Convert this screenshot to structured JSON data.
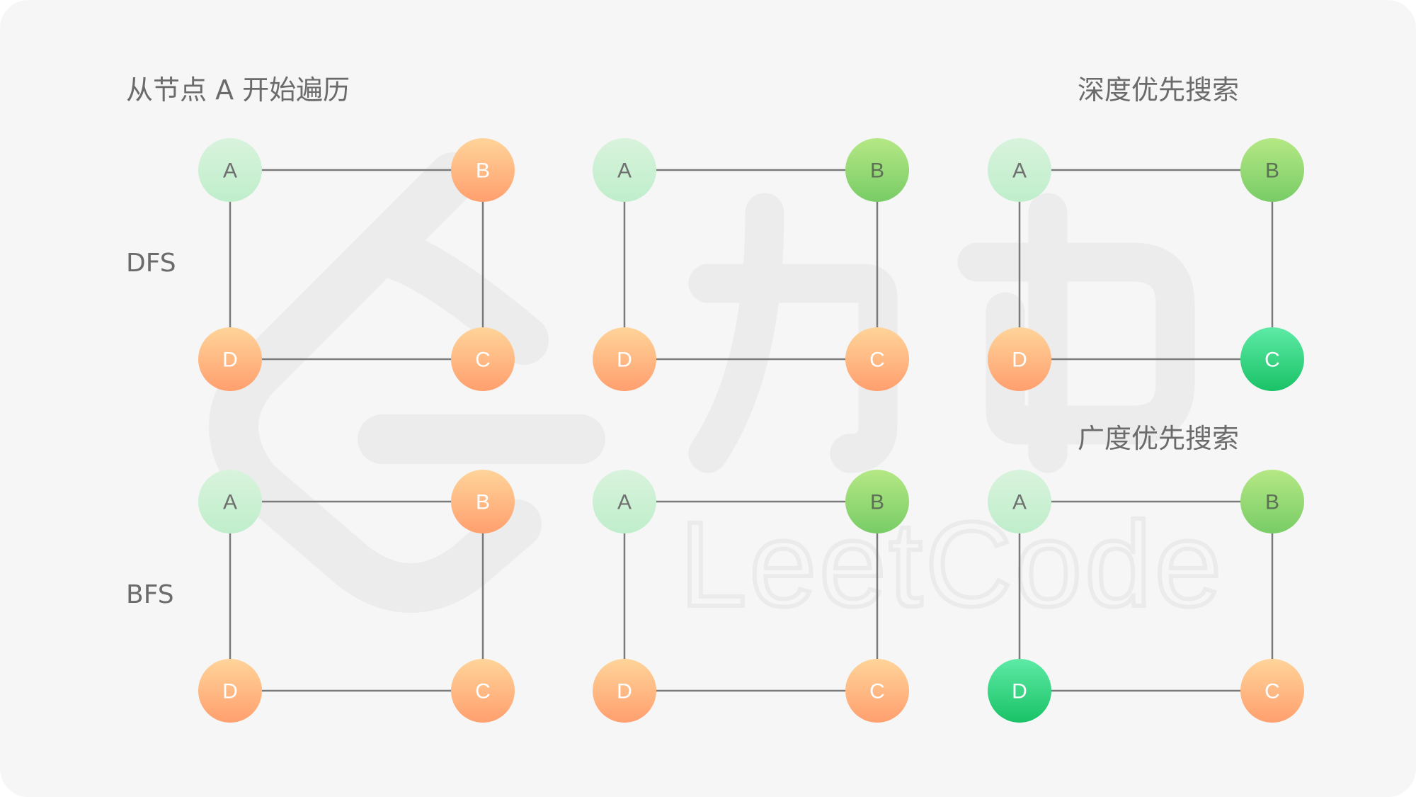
{
  "labels": {
    "start_note": "从节点 A 开始遍历",
    "dfs_title": "深度优先搜索",
    "bfs_title": "广度优先搜索",
    "dfs_row": "DFS",
    "bfs_row": "BFS"
  },
  "watermark": {
    "brand": "LeetCode"
  },
  "colors": {
    "unvisited": [
      "#ffd49a",
      "#ff9f6e"
    ],
    "start": [
      "#d9f3dc",
      "#bfeecb"
    ],
    "visited": [
      "#b5e885",
      "#78cc66"
    ],
    "current": [
      "#5eeaa6",
      "#19c266"
    ],
    "edge": "#7a7a7a"
  },
  "graphs": [
    {
      "row": "DFS",
      "step": 1,
      "nodes": [
        {
          "id": "A",
          "state": "start"
        },
        {
          "id": "B",
          "state": "unvisited"
        },
        {
          "id": "C",
          "state": "unvisited"
        },
        {
          "id": "D",
          "state": "unvisited"
        }
      ]
    },
    {
      "row": "DFS",
      "step": 2,
      "nodes": [
        {
          "id": "A",
          "state": "start"
        },
        {
          "id": "B",
          "state": "visited"
        },
        {
          "id": "C",
          "state": "unvisited"
        },
        {
          "id": "D",
          "state": "unvisited"
        }
      ]
    },
    {
      "row": "DFS",
      "step": 3,
      "nodes": [
        {
          "id": "A",
          "state": "start"
        },
        {
          "id": "B",
          "state": "visited"
        },
        {
          "id": "C",
          "state": "current"
        },
        {
          "id": "D",
          "state": "unvisited"
        }
      ]
    },
    {
      "row": "BFS",
      "step": 1,
      "nodes": [
        {
          "id": "A",
          "state": "start"
        },
        {
          "id": "B",
          "state": "unvisited"
        },
        {
          "id": "C",
          "state": "unvisited"
        },
        {
          "id": "D",
          "state": "unvisited"
        }
      ]
    },
    {
      "row": "BFS",
      "step": 2,
      "nodes": [
        {
          "id": "A",
          "state": "start"
        },
        {
          "id": "B",
          "state": "visited"
        },
        {
          "id": "C",
          "state": "unvisited"
        },
        {
          "id": "D",
          "state": "unvisited"
        }
      ]
    },
    {
      "row": "BFS",
      "step": 3,
      "nodes": [
        {
          "id": "A",
          "state": "start"
        },
        {
          "id": "B",
          "state": "visited"
        },
        {
          "id": "C",
          "state": "unvisited"
        },
        {
          "id": "D",
          "state": "current"
        }
      ]
    }
  ],
  "edges": [
    [
      "A",
      "B"
    ],
    [
      "B",
      "C"
    ],
    [
      "C",
      "D"
    ],
    [
      "D",
      "A"
    ]
  ]
}
